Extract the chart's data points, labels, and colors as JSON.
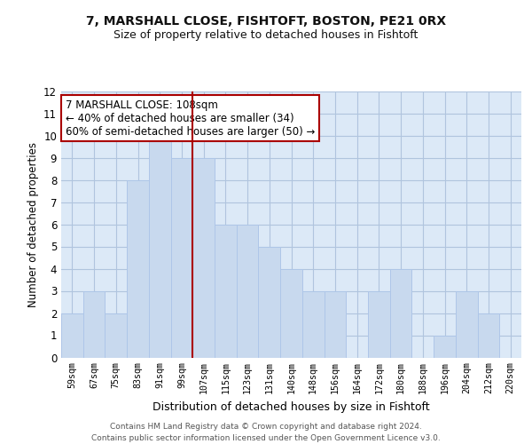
{
  "title": "7, MARSHALL CLOSE, FISHTOFT, BOSTON, PE21 0RX",
  "subtitle": "Size of property relative to detached houses in Fishtoft",
  "xlabel": "Distribution of detached houses by size in Fishtoft",
  "ylabel": "Number of detached properties",
  "categories": [
    "59sqm",
    "67sqm",
    "75sqm",
    "83sqm",
    "91sqm",
    "99sqm",
    "107sqm",
    "115sqm",
    "123sqm",
    "131sqm",
    "140sqm",
    "148sqm",
    "156sqm",
    "164sqm",
    "172sqm",
    "180sqm",
    "188sqm",
    "196sqm",
    "204sqm",
    "212sqm",
    "220sqm"
  ],
  "values": [
    2,
    3,
    2,
    8,
    10,
    9,
    9,
    6,
    6,
    5,
    4,
    3,
    3,
    0,
    3,
    4,
    0,
    1,
    3,
    2,
    0
  ],
  "bar_color": "#c8d9ee",
  "bar_edge_color": "#aec6e8",
  "vline_color": "#aa0000",
  "vline_x": 5.5,
  "annotation_text": "7 MARSHALL CLOSE: 108sqm\n← 40% of detached houses are smaller (34)\n60% of semi-detached houses are larger (50) →",
  "annotation_box_facecolor": "#ffffff",
  "annotation_box_edgecolor": "#aa0000",
  "ylim": [
    0,
    12
  ],
  "yticks": [
    0,
    1,
    2,
    3,
    4,
    5,
    6,
    7,
    8,
    9,
    10,
    11,
    12
  ],
  "plot_bg_color": "#dce9f7",
  "fig_bg_color": "#ffffff",
  "grid_color": "#b0c4de",
  "footer_line1": "Contains HM Land Registry data © Crown copyright and database right 2024.",
  "footer_line2": "Contains public sector information licensed under the Open Government Licence v3.0."
}
